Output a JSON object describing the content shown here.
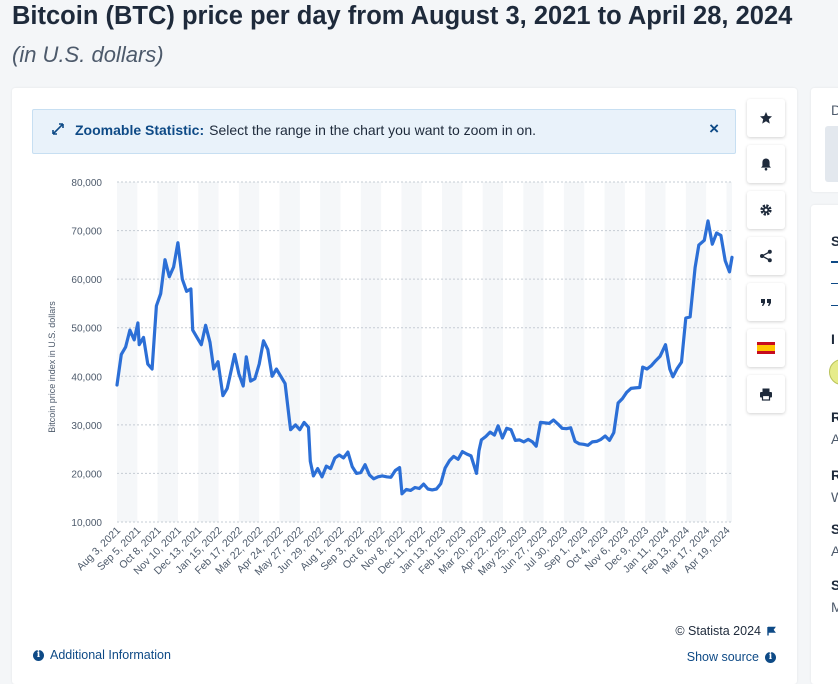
{
  "header": {
    "title": "Bitcoin (BTC) price per day from August 3, 2021 to April 28, 2024",
    "subtitle": "(in U.S. dollars)"
  },
  "banner": {
    "strong": "Zoomable Statistic:",
    "text": "Select the range in the chart you want to zoom in on.",
    "close": "×"
  },
  "toolbar": [
    "star-icon",
    "bell-icon",
    "gear-icon",
    "share-icon",
    "quote-icon",
    "spain-flag-icon",
    "print-icon"
  ],
  "footer": {
    "copyright": "© Statista 2024",
    "additional": "Additional Information",
    "show_source": "Show source"
  },
  "sidebar": {
    "letters": [
      "D",
      "S",
      "I",
      "R",
      "A",
      "R",
      "W",
      "S",
      "A",
      "S",
      "M"
    ]
  },
  "colors": {
    "line": "#2c6fd6",
    "accent": "#0e4a86"
  },
  "chart_data": {
    "type": "line",
    "title": "",
    "xlabel": "",
    "ylabel": "Bitcoin price index in U.S. dollars",
    "ylim": [
      10000,
      80000
    ],
    "yticks": [
      "10,000",
      "20,000",
      "30,000",
      "40,000",
      "50,000",
      "60,000",
      "70,000",
      "80,000"
    ],
    "xlim": [
      "2021-08-03",
      "2024-04-28"
    ],
    "xticks": [
      "Aug 3, 2021",
      "Sep 5, 2021",
      "Oct 8, 2021",
      "Nov 10, 2021",
      "Dec 13, 2021",
      "Jan 15, 2022",
      "Feb 17, 2022",
      "Mar 22, 2022",
      "Apr 24, 2022",
      "May 27, 2022",
      "Jun 29, 2022",
      "Aug 1, 2022",
      "Sep 3, 2022",
      "Oct 6, 2022",
      "Nov 8, 2022",
      "Dec 11, 2022",
      "Jan 13, 2023",
      "Feb 15, 2023",
      "Mar 20, 2023",
      "Apr 22, 2023",
      "May 25, 2023",
      "Jun 27, 2023",
      "Jul 30, 2023",
      "Sep 1, 2023",
      "Oct 4, 2023",
      "Nov 6, 2023",
      "Dec 9, 2023",
      "Jan 11, 2024",
      "Feb 13, 2024",
      "Mar 17, 2024",
      "Apr 19, 2024"
    ],
    "grid": true,
    "legend": "none",
    "series": [
      {
        "x": [
          "2021-08-03",
          "2021-08-10",
          "2021-08-17",
          "2021-08-24",
          "2021-08-31",
          "2021-09-06",
          "2021-09-08",
          "2021-09-15",
          "2021-09-22",
          "2021-09-29",
          "2021-10-06",
          "2021-10-13",
          "2021-10-20",
          "2021-10-27",
          "2021-11-03",
          "2021-11-10",
          "2021-11-17",
          "2021-11-24",
          "2021-12-01",
          "2021-12-04",
          "2021-12-11",
          "2021-12-18",
          "2021-12-25",
          "2022-01-01",
          "2022-01-07",
          "2022-01-14",
          "2022-01-22",
          "2022-01-29",
          "2022-02-05",
          "2022-02-10",
          "2022-02-17",
          "2022-02-24",
          "2022-03-01",
          "2022-03-08",
          "2022-03-15",
          "2022-03-22",
          "2022-03-29",
          "2022-04-05",
          "2022-04-12",
          "2022-04-19",
          "2022-04-26",
          "2022-05-03",
          "2022-05-10",
          "2022-05-12",
          "2022-05-20",
          "2022-05-27",
          "2022-06-03",
          "2022-06-10",
          "2022-06-13",
          "2022-06-18",
          "2022-06-25",
          "2022-07-02",
          "2022-07-09",
          "2022-07-16",
          "2022-07-23",
          "2022-07-30",
          "2022-08-06",
          "2022-08-13",
          "2022-08-20",
          "2022-08-27",
          "2022-09-03",
          "2022-09-10",
          "2022-09-17",
          "2022-09-24",
          "2022-10-01",
          "2022-10-08",
          "2022-10-15",
          "2022-10-22",
          "2022-10-29",
          "2022-11-05",
          "2022-11-09",
          "2022-11-16",
          "2022-11-23",
          "2022-11-30",
          "2022-12-07",
          "2022-12-14",
          "2022-12-21",
          "2022-12-28",
          "2023-01-04",
          "2023-01-11",
          "2023-01-18",
          "2023-01-25",
          "2023-02-01",
          "2023-02-08",
          "2023-02-15",
          "2023-02-22",
          "2023-03-01",
          "2023-03-10",
          "2023-03-14",
          "2023-03-18",
          "2023-03-25",
          "2023-04-01",
          "2023-04-08",
          "2023-04-14",
          "2023-04-21",
          "2023-04-28",
          "2023-05-05",
          "2023-05-12",
          "2023-05-19",
          "2023-05-26",
          "2023-06-02",
          "2023-06-09",
          "2023-06-15",
          "2023-06-22",
          "2023-06-29",
          "2023-07-06",
          "2023-07-13",
          "2023-07-20",
          "2023-07-27",
          "2023-08-03",
          "2023-08-10",
          "2023-08-17",
          "2023-08-24",
          "2023-08-31",
          "2023-09-07",
          "2023-09-14",
          "2023-09-21",
          "2023-09-28",
          "2023-10-05",
          "2023-10-12",
          "2023-10-19",
          "2023-10-26",
          "2023-11-02",
          "2023-11-09",
          "2023-11-16",
          "2023-11-23",
          "2023-11-30",
          "2023-12-05",
          "2023-12-12",
          "2023-12-19",
          "2023-12-26",
          "2024-01-02",
          "2024-01-11",
          "2024-01-18",
          "2024-01-23",
          "2024-01-30",
          "2024-02-06",
          "2024-02-13",
          "2024-02-20",
          "2024-02-28",
          "2024-03-05",
          "2024-03-14",
          "2024-03-20",
          "2024-03-27",
          "2024-04-03",
          "2024-04-10",
          "2024-04-17",
          "2024-04-24",
          "2024-04-28"
        ],
        "y": [
          38200,
          44500,
          46000,
          49500,
          47500,
          51000,
          46500,
          48000,
          42500,
          41500,
          54500,
          57000,
          64000,
          60500,
          62500,
          67500,
          60000,
          57500,
          58000,
          49500,
          48000,
          46500,
          50500,
          47000,
          41500,
          43000,
          36000,
          37500,
          41500,
          44500,
          40500,
          38000,
          44000,
          39000,
          39500,
          42500,
          47300,
          45500,
          40000,
          41500,
          40000,
          38500,
          31000,
          29000,
          30000,
          29000,
          30500,
          29500,
          22500,
          19500,
          21000,
          19300,
          21500,
          21000,
          23200,
          23800,
          23200,
          24400,
          21400,
          20000,
          20200,
          21800,
          19700,
          18900,
          19300,
          19500,
          19300,
          19200,
          20600,
          21200,
          15800,
          16700,
          16500,
          17100,
          16900,
          17800,
          16800,
          16600,
          16800,
          17900,
          21100,
          22600,
          23500,
          22900,
          24500,
          24000,
          23600,
          20000,
          24700,
          26900,
          27600,
          28500,
          27900,
          29800,
          27300,
          29300,
          29000,
          26800,
          26900,
          26500,
          27000,
          26500,
          25600,
          30500,
          30400,
          30300,
          31000,
          30200,
          29300,
          29200,
          29400,
          26600,
          26100,
          26000,
          25800,
          26500,
          26600,
          27000,
          27700,
          26800,
          28400,
          34500,
          35400,
          36700,
          37500,
          37600,
          37700,
          41900,
          41500,
          42200,
          43200,
          44100,
          46500,
          41500,
          39900,
          41600,
          42900,
          52000,
          52200,
          62400,
          67000,
          68000,
          72000,
          67200,
          69500,
          69000,
          63800,
          61500,
          64500
        ]
      }
    ]
  }
}
